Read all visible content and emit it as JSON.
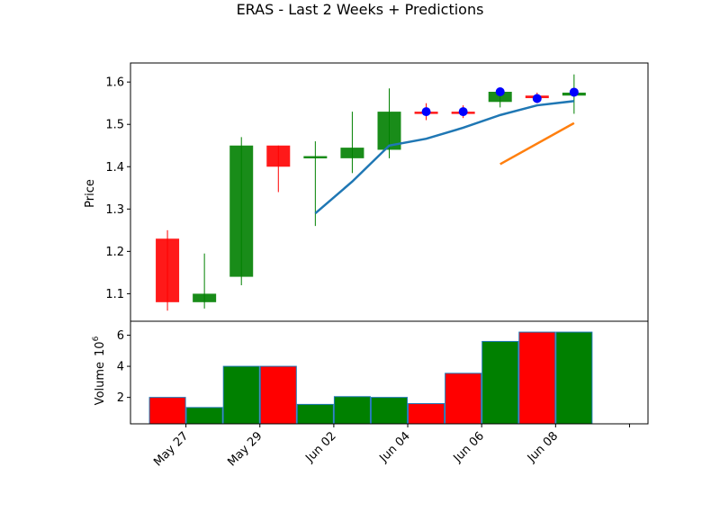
{
  "chart_data": {
    "type": "candlestick",
    "title": "ERAS - Last 2 Weeks + Predictions",
    "price_panel": {
      "ylabel": "Price",
      "ylim": [
        1.035,
        1.645
      ],
      "yticks": [
        1.1,
        1.2,
        1.3,
        1.4,
        1.5,
        1.6
      ],
      "ytick_labels": [
        "1.1",
        "1.2",
        "1.3",
        "1.4",
        "1.5",
        "1.6"
      ],
      "candles": [
        {
          "x": 1,
          "open": 1.23,
          "high": 1.25,
          "low": 1.06,
          "close": 1.08,
          "color": "red"
        },
        {
          "x": 2,
          "open": 1.08,
          "high": 1.195,
          "low": 1.065,
          "close": 1.1,
          "color": "green"
        },
        {
          "x": 3,
          "open": 1.14,
          "high": 1.47,
          "low": 1.12,
          "close": 1.45,
          "color": "green"
        },
        {
          "x": 4,
          "open": 1.45,
          "high": 1.45,
          "low": 1.34,
          "close": 1.4,
          "color": "red"
        },
        {
          "x": 5,
          "open": 1.42,
          "high": 1.46,
          "low": 1.26,
          "close": 1.425,
          "color": "green"
        },
        {
          "x": 6,
          "open": 1.42,
          "high": 1.53,
          "low": 1.385,
          "close": 1.445,
          "color": "green"
        },
        {
          "x": 7,
          "open": 1.44,
          "high": 1.585,
          "low": 1.42,
          "close": 1.53,
          "color": "green"
        },
        {
          "x": 8,
          "open": 1.53,
          "high": 1.55,
          "low": 1.51,
          "close": 1.528,
          "color": "red"
        },
        {
          "x": 9,
          "open": 1.53,
          "high": 1.545,
          "low": 1.515,
          "close": 1.528,
          "color": "red"
        },
        {
          "x": 10,
          "open": 1.553,
          "high": 1.58,
          "low": 1.54,
          "close": 1.577,
          "color": "green"
        },
        {
          "x": 11,
          "open": 1.568,
          "high": 1.575,
          "low": 1.55,
          "close": 1.562,
          "color": "red"
        },
        {
          "x": 12,
          "open": 1.568,
          "high": 1.618,
          "low": 1.525,
          "close": 1.575,
          "color": "green"
        }
      ],
      "predicted_points": [
        {
          "x": 8,
          "y": 1.53
        },
        {
          "x": 9,
          "y": 1.53
        },
        {
          "x": 10,
          "y": 1.577
        },
        {
          "x": 11,
          "y": 1.561
        },
        {
          "x": 12,
          "y": 1.576
        }
      ],
      "lines": [
        {
          "color": "#1f77b4",
          "points": [
            [
              5,
              1.29
            ],
            [
              6,
              1.365
            ],
            [
              7,
              1.45
            ],
            [
              8,
              1.466
            ],
            [
              9,
              1.492
            ],
            [
              10,
              1.522
            ],
            [
              11,
              1.545
            ],
            [
              12,
              1.555
            ]
          ]
        },
        {
          "color": "#ff7f0e",
          "points": [
            [
              10,
              1.406
            ],
            [
              12,
              1.503
            ]
          ]
        }
      ]
    },
    "volume_panel": {
      "ylabel": "Volume",
      "ylabel_exponent": "6",
      "ylim": [
        0.3,
        6.9
      ],
      "yticks": [
        2,
        4,
        6
      ],
      "ytick_labels": [
        "2",
        "4",
        "6"
      ],
      "bars": [
        {
          "x": 1,
          "value": 2.0,
          "color": "red"
        },
        {
          "x": 2,
          "value": 1.35,
          "color": "green"
        },
        {
          "x": 3,
          "value": 4.0,
          "color": "green"
        },
        {
          "x": 4,
          "value": 4.0,
          "color": "red"
        },
        {
          "x": 5,
          "value": 1.55,
          "color": "green"
        },
        {
          "x": 6,
          "value": 2.05,
          "color": "green"
        },
        {
          "x": 7,
          "value": 2.0,
          "color": "green"
        },
        {
          "x": 8,
          "value": 1.6,
          "color": "red"
        },
        {
          "x": 9,
          "value": 3.55,
          "color": "red"
        },
        {
          "x": 10,
          "value": 5.6,
          "color": "green"
        },
        {
          "x": 11,
          "value": 6.2,
          "color": "red"
        },
        {
          "x": 12,
          "value": 6.2,
          "color": "green"
        }
      ]
    },
    "x_axis": {
      "xlim": [
        0,
        14
      ],
      "ticks": [
        1.5,
        3.5,
        5.5,
        7.5,
        9.5,
        11.5,
        13.5
      ],
      "tick_labels": [
        "May 27",
        "May 29",
        "Jun 02",
        "Jun 04",
        "Jun 06",
        "Jun 08",
        ""
      ]
    },
    "colors": {
      "up": "#008000",
      "down": "#ff0000",
      "prediction_marker": "#0000ff",
      "line_1": "#1f77b4",
      "line_2": "#ff7f0e"
    }
  }
}
